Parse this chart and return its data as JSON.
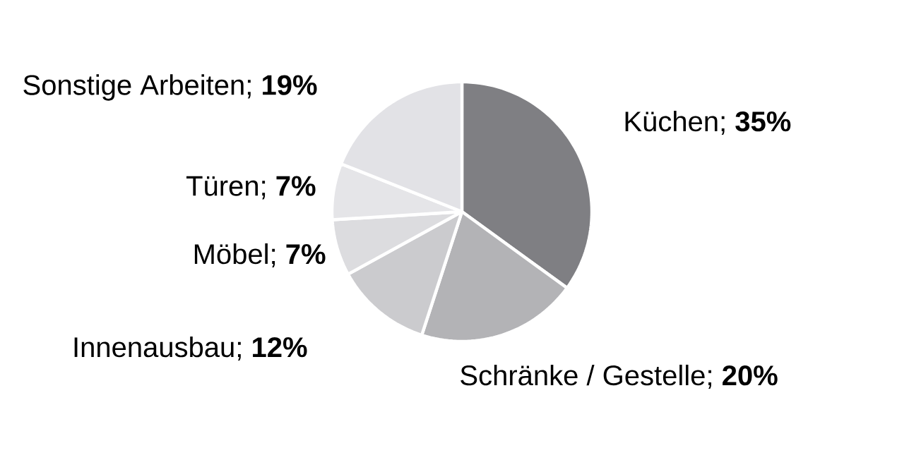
{
  "chart_data": {
    "type": "pie",
    "categories": [
      "Küchen; **35%**",
      "Schränke / Gestelle; **20%**",
      "Innenausbau; **12%**",
      "Möbel; **7%**",
      "Türen; **7%**",
      "Sonstige Arbeiten; **19%**"
    ],
    "values": [
      35,
      20,
      12,
      7,
      7,
      19
    ],
    "colors": [
      "#7f7f83",
      "#b3b3b6",
      "#cbcbce",
      "#dcdcdf",
      "#e5e5e8",
      "#e2e2e6"
    ]
  }
}
